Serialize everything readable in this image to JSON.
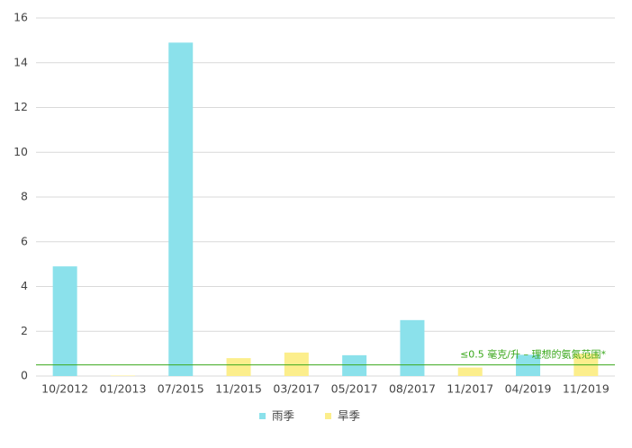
{
  "chart_data": {
    "type": "bar",
    "categories": [
      "10/2012",
      "01/2013",
      "07/2015",
      "11/2015",
      "03/2017",
      "05/2017",
      "08/2017",
      "11/2017",
      "04/2019",
      "11/2019"
    ],
    "series": [
      {
        "name": "雨季",
        "color": "#8be1eb",
        "values": [
          4.9,
          null,
          14.9,
          null,
          null,
          0.93,
          2.5,
          null,
          0.95,
          null
        ]
      },
      {
        "name": "旱季",
        "color": "#fcee8c",
        "values": [
          null,
          0.02,
          null,
          0.8,
          1.05,
          null,
          null,
          0.38,
          null,
          1.0
        ]
      }
    ],
    "ylim": [
      0,
      16
    ],
    "yticks": [
      0,
      2,
      4,
      6,
      8,
      10,
      12,
      14,
      16
    ],
    "grid": true,
    "reference_line": {
      "value": 0.5,
      "label": "≤0.5 毫克/升 – 理想的氨氮范围*",
      "color": "#3aa81c"
    },
    "legend": "bottom"
  }
}
